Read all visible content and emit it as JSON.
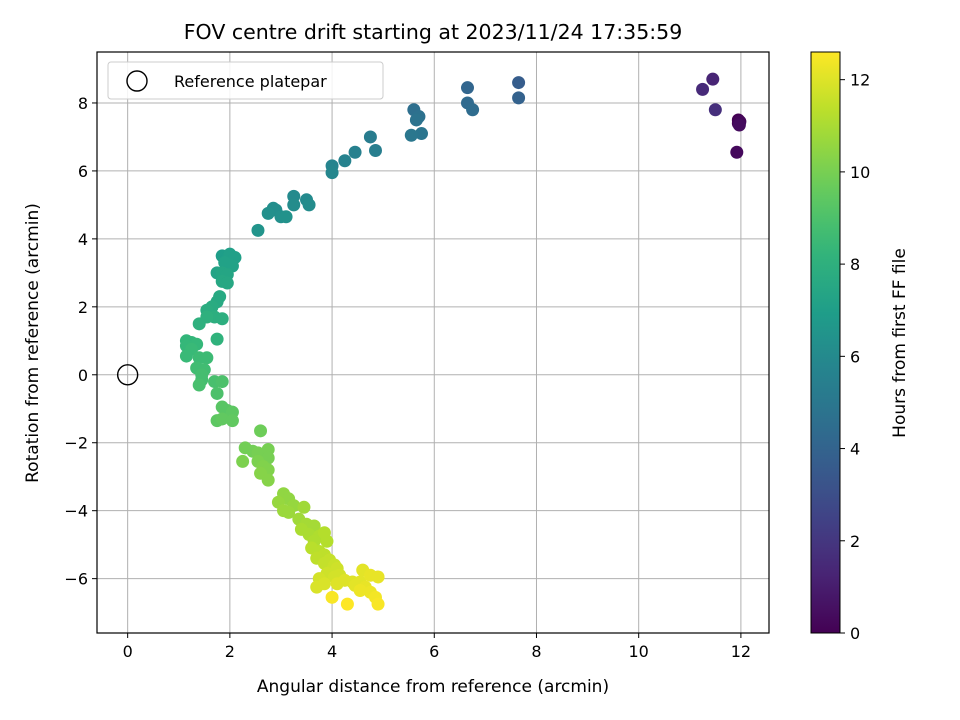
{
  "chart_data": {
    "type": "scatter",
    "title": "FOV centre drift starting at 2023/11/24 17:35:59",
    "xlabel": "Angular distance from reference (arcmin)",
    "ylabel": "Rotation from reference (arcmin)",
    "xlim": [
      -0.6,
      12.55
    ],
    "ylim": [
      -7.6,
      9.5
    ],
    "x_ticks": [
      0,
      2,
      4,
      6,
      8,
      10,
      12
    ],
    "y_ticks": [
      -6,
      -4,
      -2,
      0,
      2,
      4,
      6,
      8
    ],
    "grid": true,
    "legend": {
      "placement": "upper-left",
      "entries": [
        "Reference platepar"
      ]
    },
    "reference_point": {
      "x": 0,
      "y": 0
    },
    "colorbar": {
      "label": "Hours from first FF file",
      "range": [
        0,
        12.6
      ],
      "ticks": [
        0,
        2,
        4,
        6,
        8,
        10,
        12
      ],
      "colormap": "viridis"
    },
    "points": [
      [
        11.95,
        7.5,
        0.0
      ],
      [
        11.95,
        7.4,
        0.1
      ],
      [
        11.98,
        7.45,
        0.2
      ],
      [
        11.92,
        6.55,
        0.3
      ],
      [
        11.97,
        7.35,
        0.4
      ],
      [
        11.45,
        8.7,
        1.3
      ],
      [
        11.25,
        8.4,
        1.5
      ],
      [
        11.5,
        7.8,
        1.7
      ],
      [
        7.65,
        8.6,
        3.7
      ],
      [
        7.65,
        8.15,
        3.9
      ],
      [
        6.65,
        8.45,
        4.1
      ],
      [
        6.65,
        8.0,
        4.3
      ],
      [
        6.75,
        7.8,
        4.4
      ],
      [
        5.6,
        7.8,
        4.6
      ],
      [
        5.7,
        7.6,
        4.7
      ],
      [
        5.65,
        7.5,
        4.8
      ],
      [
        5.75,
        7.1,
        4.9
      ],
      [
        5.55,
        7.05,
        5.0
      ],
      [
        4.75,
        7.0,
        5.3
      ],
      [
        4.85,
        6.6,
        5.4
      ],
      [
        4.45,
        6.55,
        5.5
      ],
      [
        4.25,
        6.3,
        5.6
      ],
      [
        4.0,
        6.15,
        5.7
      ],
      [
        4.0,
        5.95,
        5.8
      ],
      [
        3.25,
        5.25,
        6.0
      ],
      [
        3.5,
        5.15,
        6.0
      ],
      [
        3.55,
        5.0,
        6.1
      ],
      [
        3.25,
        5.0,
        6.1
      ],
      [
        2.9,
        4.85,
        6.2
      ],
      [
        2.85,
        4.9,
        6.2
      ],
      [
        2.75,
        4.75,
        6.3
      ],
      [
        3.0,
        4.65,
        6.3
      ],
      [
        3.1,
        4.65,
        6.4
      ],
      [
        2.55,
        4.25,
        6.5
      ],
      [
        1.85,
        3.5,
        7.0
      ],
      [
        1.95,
        3.45,
        7.0
      ],
      [
        2.0,
        3.55,
        7.1
      ],
      [
        2.1,
        3.45,
        7.1
      ],
      [
        1.9,
        3.3,
        7.2
      ],
      [
        2.05,
        3.2,
        7.2
      ],
      [
        1.75,
        3.0,
        7.3
      ],
      [
        1.85,
        3.0,
        7.4
      ],
      [
        1.95,
        2.95,
        7.4
      ],
      [
        1.85,
        2.75,
        7.5
      ],
      [
        1.95,
        2.7,
        7.5
      ],
      [
        1.8,
        2.3,
        7.6
      ],
      [
        1.75,
        2.15,
        7.6
      ],
      [
        1.65,
        2.0,
        7.7
      ],
      [
        1.55,
        1.9,
        7.8
      ],
      [
        1.7,
        1.7,
        7.9
      ],
      [
        1.85,
        1.65,
        7.9
      ],
      [
        1.55,
        1.7,
        8.0
      ],
      [
        1.4,
        1.5,
        8.0
      ],
      [
        1.75,
        1.05,
        8.1
      ],
      [
        1.15,
        1.0,
        8.3
      ],
      [
        1.25,
        0.95,
        8.3
      ],
      [
        1.35,
        0.9,
        8.4
      ],
      [
        1.15,
        0.85,
        8.4
      ],
      [
        1.25,
        0.75,
        8.5
      ],
      [
        1.15,
        0.55,
        8.5
      ],
      [
        1.4,
        0.5,
        8.6
      ],
      [
        1.55,
        0.5,
        8.6
      ],
      [
        1.35,
        0.2,
        8.7
      ],
      [
        1.5,
        0.15,
        8.7
      ],
      [
        1.45,
        0.0,
        8.8
      ],
      [
        1.45,
        -0.15,
        8.8
      ],
      [
        1.4,
        -0.3,
        8.9
      ],
      [
        1.7,
        -0.2,
        8.9
      ],
      [
        1.85,
        -0.2,
        9.0
      ],
      [
        1.75,
        -0.55,
        9.0
      ],
      [
        1.85,
        -0.95,
        9.3
      ],
      [
        1.95,
        -1.05,
        9.3
      ],
      [
        2.05,
        -1.1,
        9.4
      ],
      [
        1.75,
        -1.35,
        9.4
      ],
      [
        1.85,
        -1.3,
        9.5
      ],
      [
        2.05,
        -1.35,
        9.5
      ],
      [
        2.6,
        -1.65,
        9.8
      ],
      [
        2.3,
        -2.15,
        9.9
      ],
      [
        2.45,
        -2.25,
        9.9
      ],
      [
        2.55,
        -2.3,
        10.0
      ],
      [
        2.75,
        -2.2,
        10.0
      ],
      [
        2.75,
        -2.45,
        10.0
      ],
      [
        2.25,
        -2.55,
        10.1
      ],
      [
        2.55,
        -2.55,
        10.1
      ],
      [
        2.65,
        -2.7,
        10.2
      ],
      [
        2.75,
        -2.8,
        10.2
      ],
      [
        2.6,
        -2.9,
        10.3
      ],
      [
        2.75,
        -3.1,
        10.3
      ],
      [
        3.05,
        -3.5,
        10.5
      ],
      [
        3.15,
        -3.65,
        10.5
      ],
      [
        2.95,
        -3.75,
        10.6
      ],
      [
        3.25,
        -3.85,
        10.6
      ],
      [
        3.05,
        -4.0,
        10.7
      ],
      [
        3.15,
        -4.05,
        10.7
      ],
      [
        3.45,
        -3.9,
        10.8
      ],
      [
        3.35,
        -4.25,
        10.8
      ],
      [
        3.5,
        -4.4,
        10.9
      ],
      [
        3.65,
        -4.45,
        10.9
      ],
      [
        3.4,
        -4.55,
        11.0
      ],
      [
        3.55,
        -4.7,
        11.0
      ],
      [
        3.75,
        -4.75,
        11.1
      ],
      [
        3.65,
        -4.9,
        11.1
      ],
      [
        3.85,
        -4.65,
        11.2
      ],
      [
        3.9,
        -4.9,
        11.2
      ],
      [
        3.6,
        -5.1,
        11.3
      ],
      [
        3.75,
        -5.2,
        11.3
      ],
      [
        3.85,
        -5.3,
        11.4
      ],
      [
        3.7,
        -5.4,
        11.4
      ],
      [
        3.95,
        -5.45,
        11.5
      ],
      [
        3.85,
        -5.55,
        11.5
      ],
      [
        4.05,
        -5.6,
        11.6
      ],
      [
        4.0,
        -5.75,
        11.6
      ],
      [
        3.9,
        -5.85,
        11.7
      ],
      [
        4.1,
        -5.7,
        11.7
      ],
      [
        4.15,
        -5.9,
        11.8
      ],
      [
        4.05,
        -5.95,
        11.8
      ],
      [
        3.75,
        -6.0,
        11.8
      ],
      [
        3.7,
        -6.25,
        11.9
      ],
      [
        3.85,
        -6.15,
        11.9
      ],
      [
        4.1,
        -6.15,
        12.0
      ],
      [
        4.25,
        -6.05,
        12.0
      ],
      [
        4.4,
        -6.1,
        12.0
      ],
      [
        4.55,
        -6.1,
        12.1
      ],
      [
        4.45,
        -6.2,
        12.1
      ],
      [
        4.6,
        -5.75,
        12.1
      ],
      [
        4.75,
        -5.9,
        12.2
      ],
      [
        4.9,
        -5.95,
        12.2
      ],
      [
        4.65,
        -6.25,
        12.2
      ],
      [
        4.55,
        -6.35,
        12.3
      ],
      [
        4.75,
        -6.4,
        12.3
      ],
      [
        4.85,
        -6.55,
        12.4
      ],
      [
        4.9,
        -6.75,
        12.5
      ],
      [
        4.0,
        -6.55,
        12.5
      ],
      [
        4.3,
        -6.75,
        12.6
      ]
    ]
  }
}
